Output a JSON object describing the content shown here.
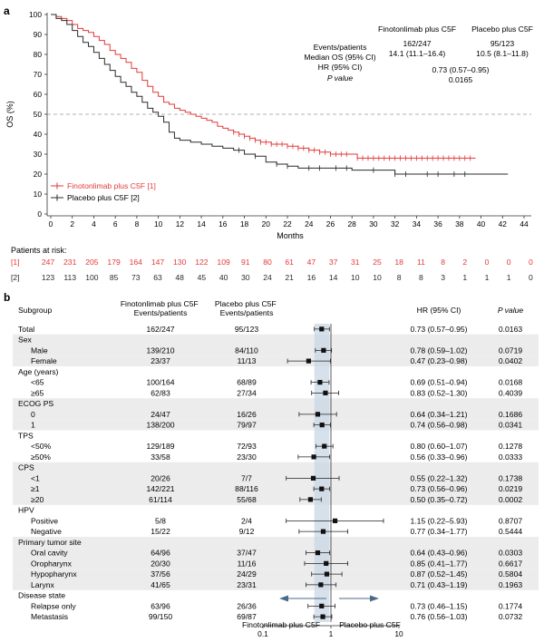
{
  "chart_data": [
    {
      "type": "line",
      "panel_label": "a",
      "ylabel": "OS (%)",
      "xlabel": "Months",
      "xlim": [
        0,
        44
      ],
      "ylim": [
        0,
        100
      ],
      "x_ticks": [
        "0",
        "2",
        "4",
        "6",
        "8",
        "10",
        "12",
        "14",
        "16",
        "18",
        "20",
        "22",
        "24",
        "26",
        "28",
        "30",
        "32",
        "34",
        "36",
        "38",
        "40",
        "42",
        "44"
      ],
      "y_ticks": [
        "0",
        "10",
        "20",
        "30",
        "40",
        "50",
        "60",
        "70",
        "80",
        "90",
        "100"
      ],
      "reference_line": 50,
      "colors": {
        "finotonlimab": "#e23a3a",
        "placebo": "#2b2b2b",
        "reference": "#999999"
      },
      "legend": [
        "Finotonlimab plus C5F [1]",
        "Placebo plus C5F [2]"
      ],
      "stats": {
        "row_labels": [
          "Events/patients",
          "Median OS (95% CI)",
          "HR (95% CI)",
          "P value"
        ],
        "finotonlimab_header": "Finotonlimab plus C5F",
        "placebo_header": "Placebo plus C5F",
        "finotonlimab_events": "162/247",
        "finotonlimab_median": "14.1 (11.1–16.4)",
        "placebo_events": "95/123",
        "placebo_median": "10.5 (8.1–11.8)",
        "hr": "0.73 (0.57–0.95)",
        "p": "0.0165"
      },
      "series": [
        {
          "name": "Finotonlimab plus C5F [1]",
          "x": [
            0,
            0.5,
            1,
            1.5,
            2,
            2.5,
            3,
            3.5,
            4,
            4.5,
            5,
            5.5,
            6,
            6.5,
            7,
            7.5,
            8,
            8.5,
            9,
            9.5,
            10,
            10.5,
            11,
            11.5,
            12,
            12.5,
            13,
            13.5,
            14,
            14.5,
            15,
            15.5,
            16,
            16.5,
            17,
            17.5,
            18,
            18.5,
            19,
            19.5,
            20,
            20.5,
            21,
            22,
            23,
            24,
            25,
            26,
            27,
            28,
            28.5,
            30,
            32,
            34,
            36,
            38,
            39.5
          ],
          "y": [
            100,
            99,
            98,
            97,
            95,
            93,
            92,
            91,
            89,
            87,
            85,
            82,
            80,
            78,
            76,
            73,
            71,
            67,
            64,
            61,
            59,
            56,
            55,
            53,
            52,
            51,
            50,
            49,
            48,
            47,
            46,
            44,
            43,
            42,
            41,
            40,
            39,
            38,
            37,
            36,
            36,
            35,
            35,
            34,
            33,
            32,
            31,
            30,
            30,
            30,
            28,
            28,
            28,
            28,
            28,
            28,
            28
          ],
          "censor_x": [
            17,
            17.5,
            18,
            18.5,
            19,
            19.5,
            20,
            20.5,
            21,
            21.5,
            22,
            22.5,
            23,
            23.5,
            24,
            24.5,
            25,
            25.5,
            26,
            26.5,
            27,
            27.5,
            28.5,
            29,
            29.5,
            30,
            30.5,
            31,
            31.5,
            32,
            32.5,
            33,
            33.5,
            34,
            34.5,
            35,
            35.5,
            36,
            36.5,
            37,
            37.5,
            38,
            38.5,
            39
          ]
        },
        {
          "name": "Placebo plus C5F [2]",
          "x": [
            0,
            0.5,
            1,
            1.5,
            2,
            2.5,
            3,
            3.5,
            4,
            4.5,
            5,
            5.5,
            6,
            6.5,
            7,
            7.5,
            8,
            8.5,
            9,
            9.5,
            10,
            10.5,
            11,
            11.5,
            12,
            13,
            14,
            15,
            16,
            17,
            18,
            19,
            20,
            21,
            22,
            23,
            24,
            25,
            26,
            27,
            28,
            30,
            32,
            34,
            36,
            38,
            40,
            42.5
          ],
          "y": [
            100,
            98,
            97,
            95,
            92,
            89,
            86,
            84,
            81,
            78,
            75,
            72,
            69,
            66,
            64,
            61,
            59,
            56,
            53,
            51,
            49,
            46,
            41,
            38,
            37,
            36,
            35,
            34,
            33,
            32,
            30,
            29,
            26,
            25,
            24,
            23,
            23,
            23,
            23,
            23,
            22,
            22,
            20,
            20,
            20,
            20,
            20,
            20
          ],
          "censor_x": [
            17.5,
            19,
            21,
            22,
            24,
            25,
            26.5,
            27.5,
            30,
            32,
            33,
            35,
            36,
            37.5,
            38.5
          ]
        }
      ],
      "risk_table": {
        "title": "Patients at risk:",
        "rows": [
          {
            "label": "[1]",
            "values": [
              "247",
              "231",
              "205",
              "179",
              "164",
              "147",
              "130",
              "122",
              "109",
              "91",
              "80",
              "61",
              "47",
              "37",
              "31",
              "25",
              "18",
              "11",
              "8",
              "2",
              "0",
              "0",
              "0"
            ]
          },
          {
            "label": "[2]",
            "values": [
              "123",
              "113",
              "100",
              "85",
              "73",
              "63",
              "48",
              "45",
              "40",
              "30",
              "24",
              "21",
              "16",
              "14",
              "10",
              "10",
              "8",
              "8",
              "3",
              "1",
              "1",
              "1",
              "0"
            ]
          }
        ]
      }
    },
    {
      "type": "forest",
      "panel_label": "b",
      "headers": {
        "subgroup": "Subgroup",
        "fino": "Finotonlimab plus C5F Events/patients",
        "placebo": "Placebo plus C5F Events/patients",
        "hr": "HR (95% CI)",
        "p": "P value"
      },
      "xscale": "log",
      "xlim": [
        0.1,
        10
      ],
      "x_ticks": [
        "0.1",
        "1",
        "10"
      ],
      "reference_line": 1,
      "arrow_left": "Finotonlimab plus C5F",
      "arrow_right": "Placebo plus C5F",
      "rows": [
        {
          "label": "Total",
          "level": 0,
          "fino": "162/247",
          "placebo": "95/123",
          "hr": 0.73,
          "lo": 0.57,
          "hi": 0.95,
          "hr_text": "0.73 (0.57–0.95)",
          "p": "0.0163",
          "shade": false
        },
        {
          "label": "Sex",
          "level": 0,
          "heading": true,
          "shade": true
        },
        {
          "label": "Male",
          "level": 1,
          "fino": "139/210",
          "placebo": "84/110",
          "hr": 0.78,
          "lo": 0.59,
          "hi": 1.02,
          "hr_text": "0.78 (0.59–1.02)",
          "p": "0.0719",
          "shade": true
        },
        {
          "label": "Female",
          "level": 1,
          "fino": "23/37",
          "placebo": "11/13",
          "hr": 0.47,
          "lo": 0.23,
          "hi": 0.98,
          "hr_text": "0.47 (0.23–0.98)",
          "p": "0.0402",
          "shade": true
        },
        {
          "label": "Age (years)",
          "level": 0,
          "heading": true,
          "shade": false
        },
        {
          "label": "<65",
          "level": 1,
          "fino": "100/164",
          "placebo": "68/89",
          "hr": 0.69,
          "lo": 0.51,
          "hi": 0.94,
          "hr_text": "0.69 (0.51–0.94)",
          "p": "0.0168",
          "shade": false
        },
        {
          "label": "≥65",
          "level": 1,
          "fino": "62/83",
          "placebo": "27/34",
          "hr": 0.83,
          "lo": 0.52,
          "hi": 1.3,
          "hr_text": "0.83 (0.52–1.30)",
          "p": "0.4039",
          "shade": false
        },
        {
          "label": "ECOG PS",
          "level": 0,
          "heading": true,
          "shade": true
        },
        {
          "label": "0",
          "level": 1,
          "fino": "24/47",
          "placebo": "16/26",
          "hr": 0.64,
          "lo": 0.34,
          "hi": 1.21,
          "hr_text": "0.64 (0.34–1.21)",
          "p": "0.1686",
          "shade": true
        },
        {
          "label": "1",
          "level": 1,
          "fino": "138/200",
          "placebo": "79/97",
          "hr": 0.74,
          "lo": 0.56,
          "hi": 0.98,
          "hr_text": "0.74 (0.56–0.98)",
          "p": "0.0341",
          "shade": true
        },
        {
          "label": "TPS",
          "level": 0,
          "heading": true,
          "shade": false
        },
        {
          "label": "<50%",
          "level": 1,
          "fino": "129/189",
          "placebo": "72/93",
          "hr": 0.8,
          "lo": 0.6,
          "hi": 1.07,
          "hr_text": "0.80 (0.60–1.07)",
          "p": "0.1278",
          "shade": false
        },
        {
          "label": "≥50%",
          "level": 1,
          "fino": "33/58",
          "placebo": "23/30",
          "hr": 0.56,
          "lo": 0.33,
          "hi": 0.96,
          "hr_text": "0.56 (0.33–0.96)",
          "p": "0.0333",
          "shade": false
        },
        {
          "label": "CPS",
          "level": 0,
          "heading": true,
          "shade": true
        },
        {
          "label": "<1",
          "level": 1,
          "fino": "20/26",
          "placebo": "7/7",
          "hr": 0.55,
          "lo": 0.22,
          "hi": 1.32,
          "hr_text": "0.55 (0.22–1.32)",
          "p": "0.1738",
          "shade": true
        },
        {
          "label": "≥1",
          "level": 1,
          "fino": "142/221",
          "placebo": "88/116",
          "hr": 0.73,
          "lo": 0.56,
          "hi": 0.96,
          "hr_text": "0.73 (0.56–0.96)",
          "p": "0.0219",
          "shade": true
        },
        {
          "label": "≥20",
          "level": 1,
          "fino": "61/114",
          "placebo": "55/68",
          "hr": 0.5,
          "lo": 0.35,
          "hi": 0.72,
          "hr_text": "0.50 (0.35–0.72)",
          "p": "0.0002",
          "shade": true
        },
        {
          "label": "HPV",
          "level": 0,
          "heading": true,
          "shade": false
        },
        {
          "label": "Positive",
          "level": 1,
          "fino": "5/8",
          "placebo": "2/4",
          "hr": 1.15,
          "lo": 0.22,
          "hi": 5.93,
          "hr_text": "1.15 (0.22–5.93)",
          "p": "0.8707",
          "shade": false
        },
        {
          "label": "Negative",
          "level": 1,
          "fino": "15/22",
          "placebo": "9/12",
          "hr": 0.77,
          "lo": 0.34,
          "hi": 1.77,
          "hr_text": "0.77 (0.34–1.77)",
          "p": "0.5444",
          "shade": false
        },
        {
          "label": "Primary tumor site",
          "level": 0,
          "heading": true,
          "shade": true
        },
        {
          "label": "Oral cavity",
          "level": 1,
          "fino": "64/96",
          "placebo": "37/47",
          "hr": 0.64,
          "lo": 0.43,
          "hi": 0.96,
          "hr_text": "0.64 (0.43–0.96)",
          "p": "0.0303",
          "shade": true
        },
        {
          "label": "Oropharynx",
          "level": 1,
          "fino": "20/30",
          "placebo": "11/16",
          "hr": 0.85,
          "lo": 0.41,
          "hi": 1.77,
          "hr_text": "0.85 (0.41–1.77)",
          "p": "0.6617",
          "shade": true
        },
        {
          "label": "Hypopharynx",
          "level": 1,
          "fino": "37/56",
          "placebo": "24/29",
          "hr": 0.87,
          "lo": 0.52,
          "hi": 1.45,
          "hr_text": "0.87 (0.52–1.45)",
          "p": "0.5804",
          "shade": true
        },
        {
          "label": "Larynx",
          "level": 1,
          "fino": "41/65",
          "placebo": "23/31",
          "hr": 0.71,
          "lo": 0.43,
          "hi": 1.19,
          "hr_text": "0.71 (0.43–1.19)",
          "p": "0.1963",
          "shade": true
        },
        {
          "label": "Disease state",
          "level": 0,
          "heading": true,
          "shade": false
        },
        {
          "label": "Relapse only",
          "level": 1,
          "fino": "63/96",
          "placebo": "26/36",
          "hr": 0.73,
          "lo": 0.46,
          "hi": 1.15,
          "hr_text": "0.73 (0.46–1.15)",
          "p": "0.1774",
          "shade": false
        },
        {
          "label": "Metastasis",
          "level": 1,
          "fino": "99/150",
          "placebo": "69/87",
          "hr": 0.76,
          "lo": 0.56,
          "hi": 1.03,
          "hr_text": "0.76 (0.56–1.03)",
          "p": "0.0732",
          "shade": false
        }
      ]
    }
  ]
}
